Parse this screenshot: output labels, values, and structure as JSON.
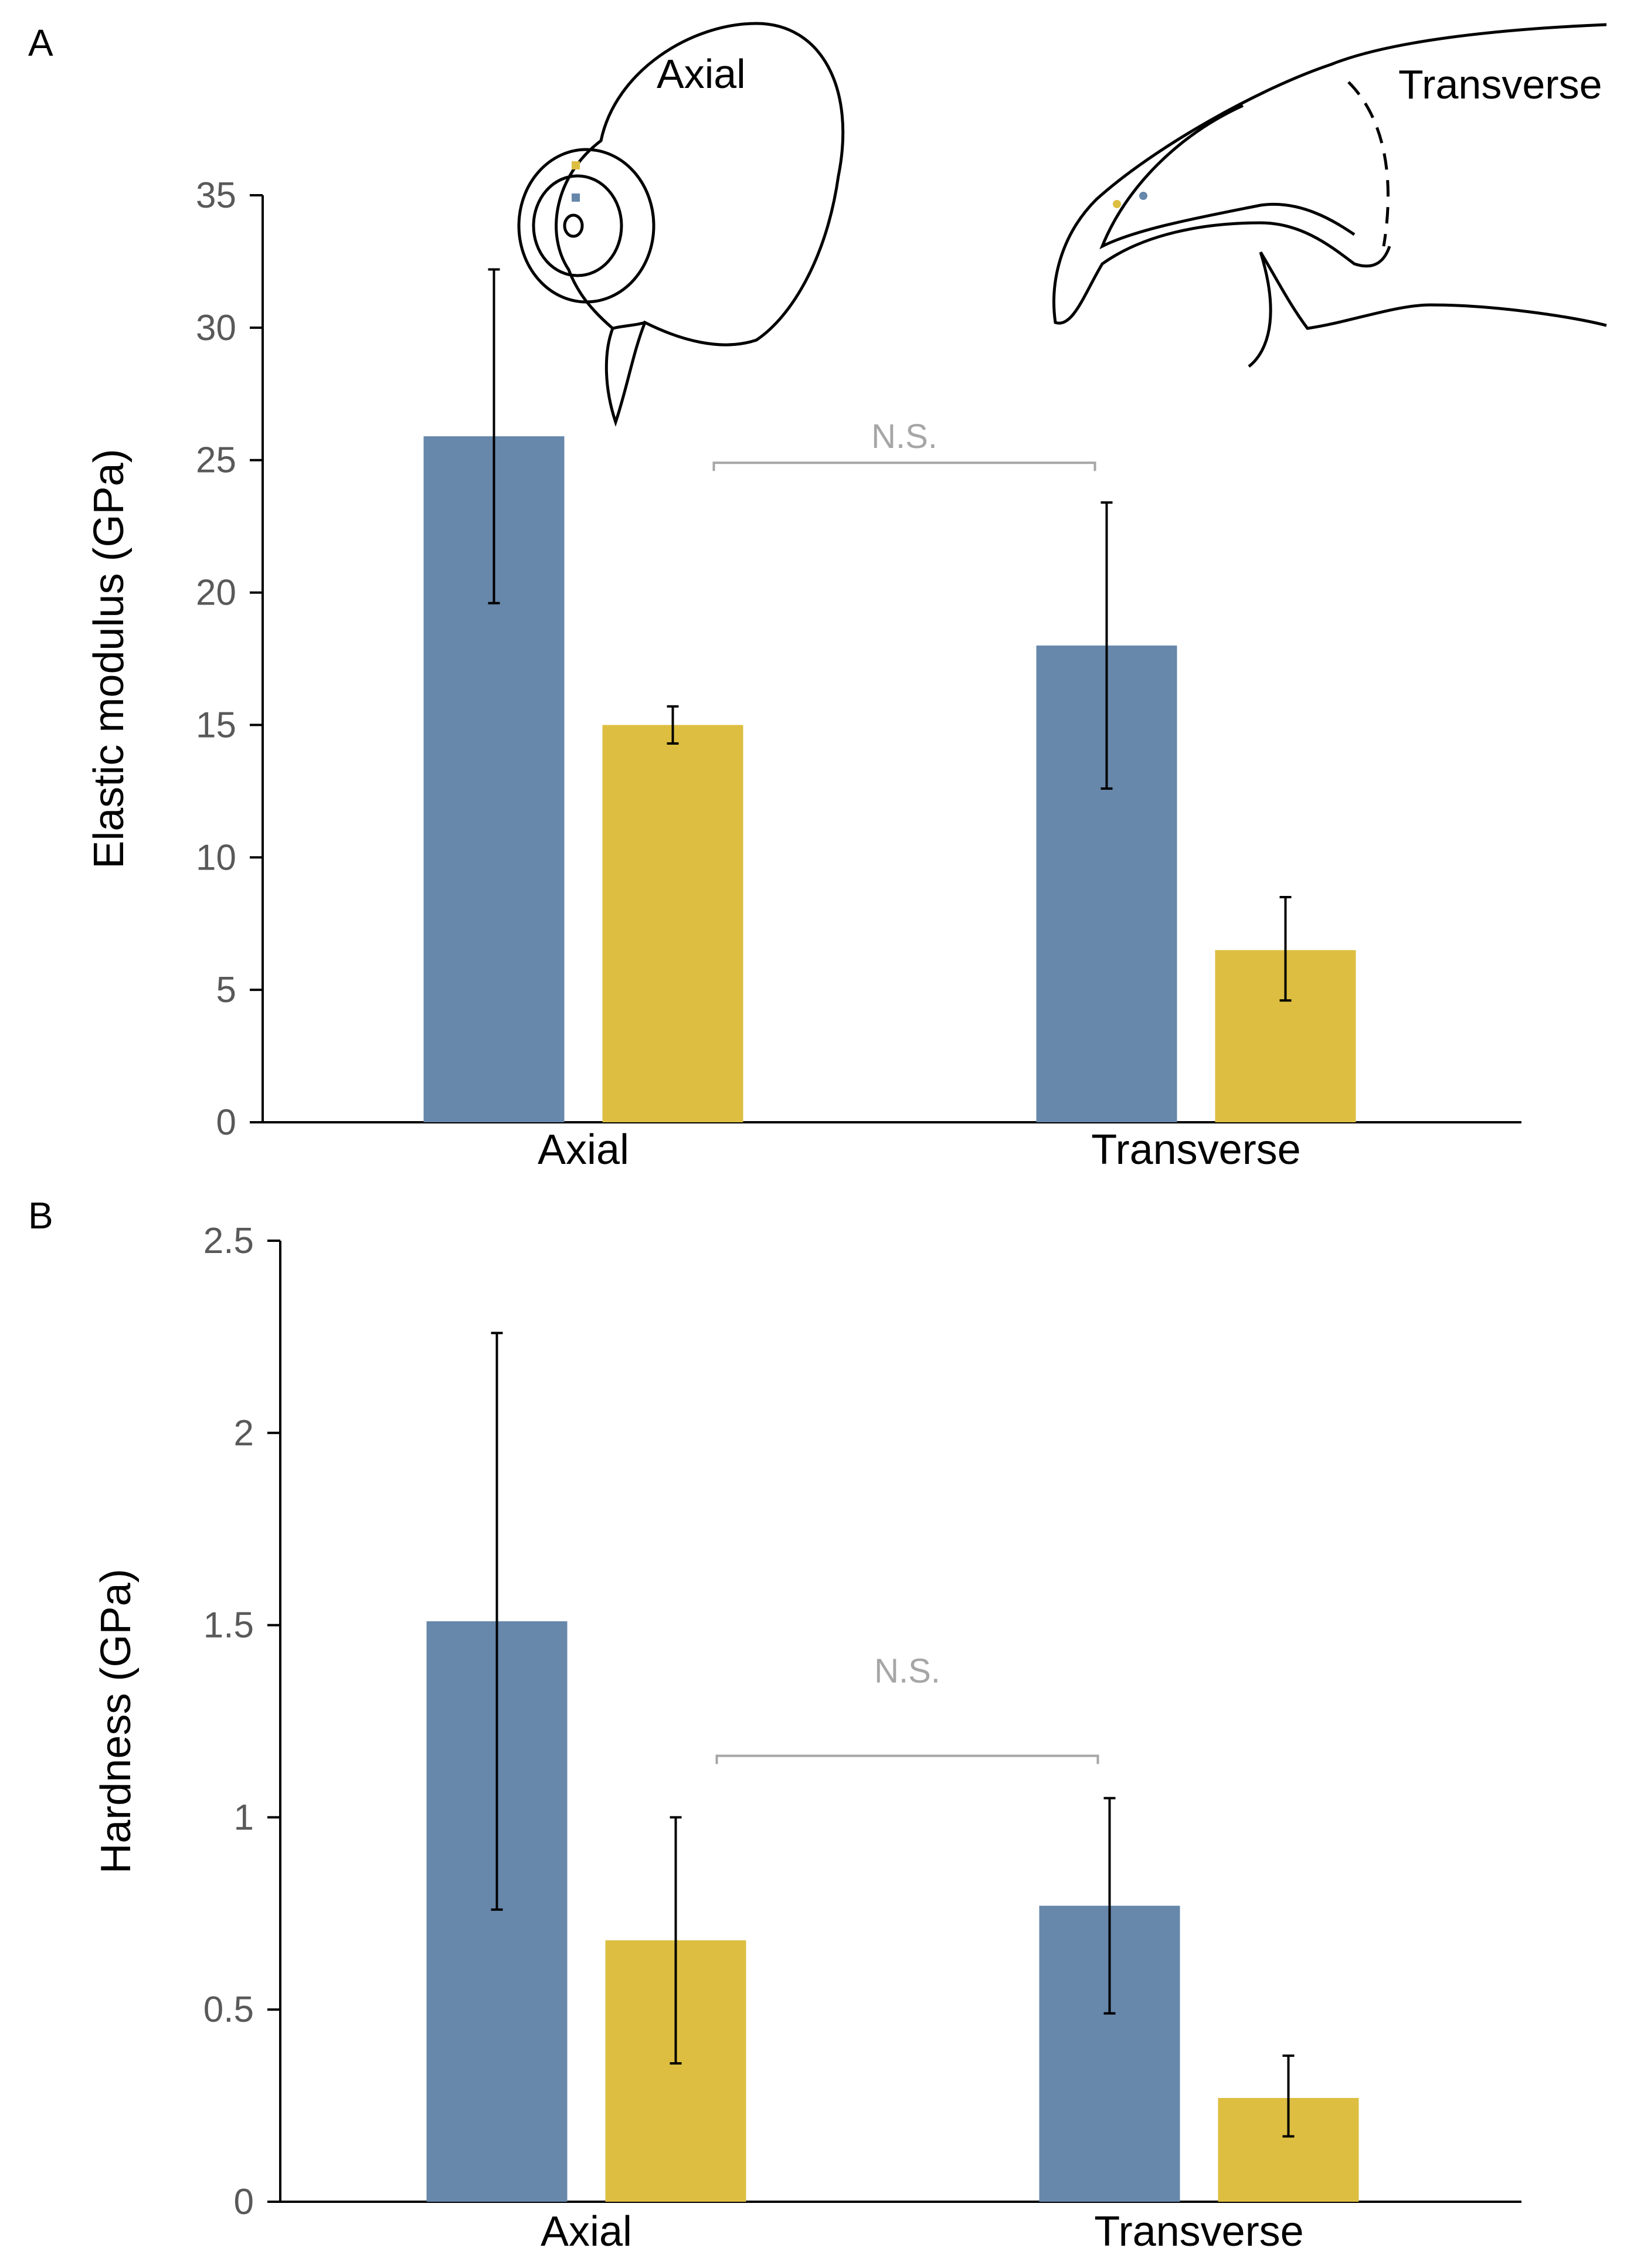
{
  "colors": {
    "series1": "#6787ab",
    "series2": "#ddbe41",
    "axis": "#000000",
    "tick_text": "#595959",
    "ns": "#a6a6a6",
    "errorbar": "#000000"
  },
  "panels": {
    "a": "A",
    "b": "B"
  },
  "sketch": {
    "axial_label": "Axial",
    "transverse_label": "Transverse"
  },
  "chart_data": [
    {
      "type": "bar",
      "panel": "A",
      "categories": [
        "Axial",
        "Transverse"
      ],
      "ylabel": "Elastic modulus (GPa)",
      "xlabel": "",
      "ylim": [
        0,
        35
      ],
      "yticks": [
        0,
        5,
        10,
        15,
        20,
        25,
        30,
        35
      ],
      "yticklabels": [
        "0",
        "5",
        "10",
        "15",
        "20",
        "25",
        "30",
        "35"
      ],
      "grid": false,
      "series": [
        {
          "name": "blue",
          "color": "#6787ab",
          "values": [
            25.9,
            18.0
          ],
          "err_low": [
            19.6,
            12.6
          ],
          "err_high": [
            32.2,
            23.4
          ]
        },
        {
          "name": "yellow",
          "color": "#ddbe41",
          "values": [
            15.0,
            6.5
          ],
          "err_low": [
            14.3,
            4.6
          ],
          "err_high": [
            15.7,
            8.5
          ]
        }
      ],
      "annotation": {
        "text": "N.S.",
        "from": "Axial yellow",
        "to": "Transverse blue",
        "level": 24.9
      }
    },
    {
      "type": "bar",
      "panel": "B",
      "categories": [
        "Axial",
        "Transverse"
      ],
      "ylabel": "Hardness (GPa)",
      "xlabel": "",
      "ylim": [
        0,
        2.5
      ],
      "yticks": [
        0,
        0.5,
        1,
        1.5,
        2,
        2.5
      ],
      "yticklabels": [
        "0",
        "0.5",
        "1",
        "1.5",
        "2",
        "2.5"
      ],
      "grid": false,
      "series": [
        {
          "name": "blue",
          "color": "#6787ab",
          "values": [
            1.51,
            0.77
          ],
          "err_low": [
            0.76,
            0.49
          ],
          "err_high": [
            2.26,
            1.05
          ]
        },
        {
          "name": "yellow",
          "color": "#ddbe41",
          "values": [
            0.68,
            0.27
          ],
          "err_low": [
            0.36,
            0.17
          ],
          "err_high": [
            1.0,
            0.38
          ]
        }
      ],
      "annotation": {
        "text": "N.S.",
        "from": "Axial yellow",
        "to": "Transverse blue",
        "level": 1.16
      }
    }
  ]
}
